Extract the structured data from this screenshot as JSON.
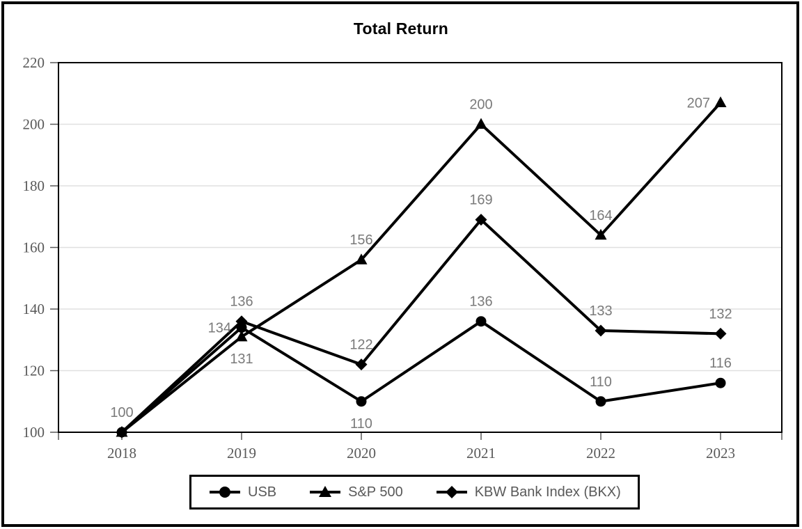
{
  "figure": {
    "title": "Total Return"
  },
  "legend": {
    "items": [
      {
        "label": "USB",
        "marker": "circle"
      },
      {
        "label": "S&P 500",
        "marker": "triangle"
      },
      {
        "label": "KBW Bank Index (BKX)",
        "marker": "diamond"
      }
    ]
  },
  "chart_data": {
    "type": "line",
    "title": "Total Return",
    "xlabel": "",
    "ylabel": "",
    "categories": [
      "2018",
      "2019",
      "2020",
      "2021",
      "2022",
      "2023"
    ],
    "y_axis": {
      "min": 100,
      "max": 220,
      "step": 20
    },
    "grid": true,
    "legend_position": "bottom",
    "colors": {
      "series_line": "#000000",
      "marker": "#000000",
      "data_label": "#7a7a7a",
      "axis_label": "#595959",
      "tick": "#595959",
      "gridline": "#e0e0e0",
      "plot_border": "#000000"
    },
    "series": [
      {
        "name": "USB",
        "marker": "circle",
        "values": [
          100,
          134,
          110,
          136,
          110,
          116
        ],
        "label_positions": [
          "above",
          "left",
          "below",
          "above",
          "above",
          "above"
        ]
      },
      {
        "name": "S&P 500",
        "marker": "triangle",
        "values": [
          100,
          131,
          156,
          200,
          164,
          207
        ],
        "label_positions": [
          "hidden",
          "below",
          "above",
          "above",
          "above",
          "left"
        ]
      },
      {
        "name": "KBW Bank Index (BKX)",
        "marker": "diamond",
        "values": [
          100,
          136,
          122,
          169,
          133,
          132
        ],
        "label_positions": [
          "hidden",
          "above",
          "above",
          "above",
          "above",
          "above"
        ]
      }
    ]
  }
}
